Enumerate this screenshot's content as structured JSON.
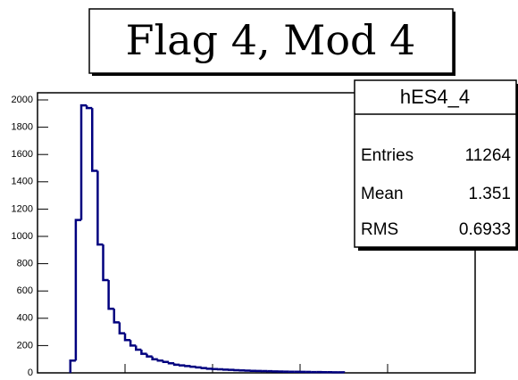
{
  "chart_data": {
    "type": "histogram",
    "title": "Flag 4, Mod 4",
    "bins": [
      0.75,
      0.875,
      1.0,
      1.125,
      1.25,
      1.375,
      1.5,
      1.625,
      1.75,
      1.875,
      2.0,
      2.125,
      2.25,
      2.375,
      2.5,
      2.625,
      2.75,
      2.875,
      3.0,
      3.125,
      3.25,
      3.375,
      3.5,
      3.625,
      3.75,
      3.875,
      4.0,
      4.125,
      4.25,
      4.375,
      4.5,
      4.625,
      4.75,
      4.875,
      5.0,
      5.125,
      5.25,
      5.375,
      5.5,
      5.625,
      5.75,
      5.875,
      6.0,
      6.125,
      6.25,
      6.375,
      6.5,
      6.625,
      6.75,
      6.875,
      7.0
    ],
    "values": [
      90,
      1120,
      1960,
      1940,
      1480,
      940,
      680,
      470,
      370,
      290,
      240,
      200,
      170,
      140,
      120,
      100,
      90,
      80,
      70,
      60,
      55,
      50,
      45,
      40,
      35,
      30,
      28,
      26,
      24,
      22,
      20,
      18,
      16,
      15,
      14,
      13,
      12,
      11,
      10,
      9,
      8,
      8,
      7,
      7,
      6,
      6,
      5,
      5,
      4,
      4
    ],
    "color": "#00007f",
    "xlim": [
      0,
      10
    ],
    "xticks": [
      0,
      2,
      4,
      6,
      8,
      10
    ],
    "ylim": [
      0,
      2000
    ],
    "yticks": [
      0,
      200,
      400,
      600,
      800,
      1000,
      1200,
      1400,
      1600,
      1800,
      2000
    ],
    "stats": {
      "title": "hES4_4",
      "rows": [
        [
          "Entries",
          11264
        ],
        [
          "Mean",
          1.351
        ],
        [
          "RMS",
          0.6933
        ]
      ]
    }
  }
}
